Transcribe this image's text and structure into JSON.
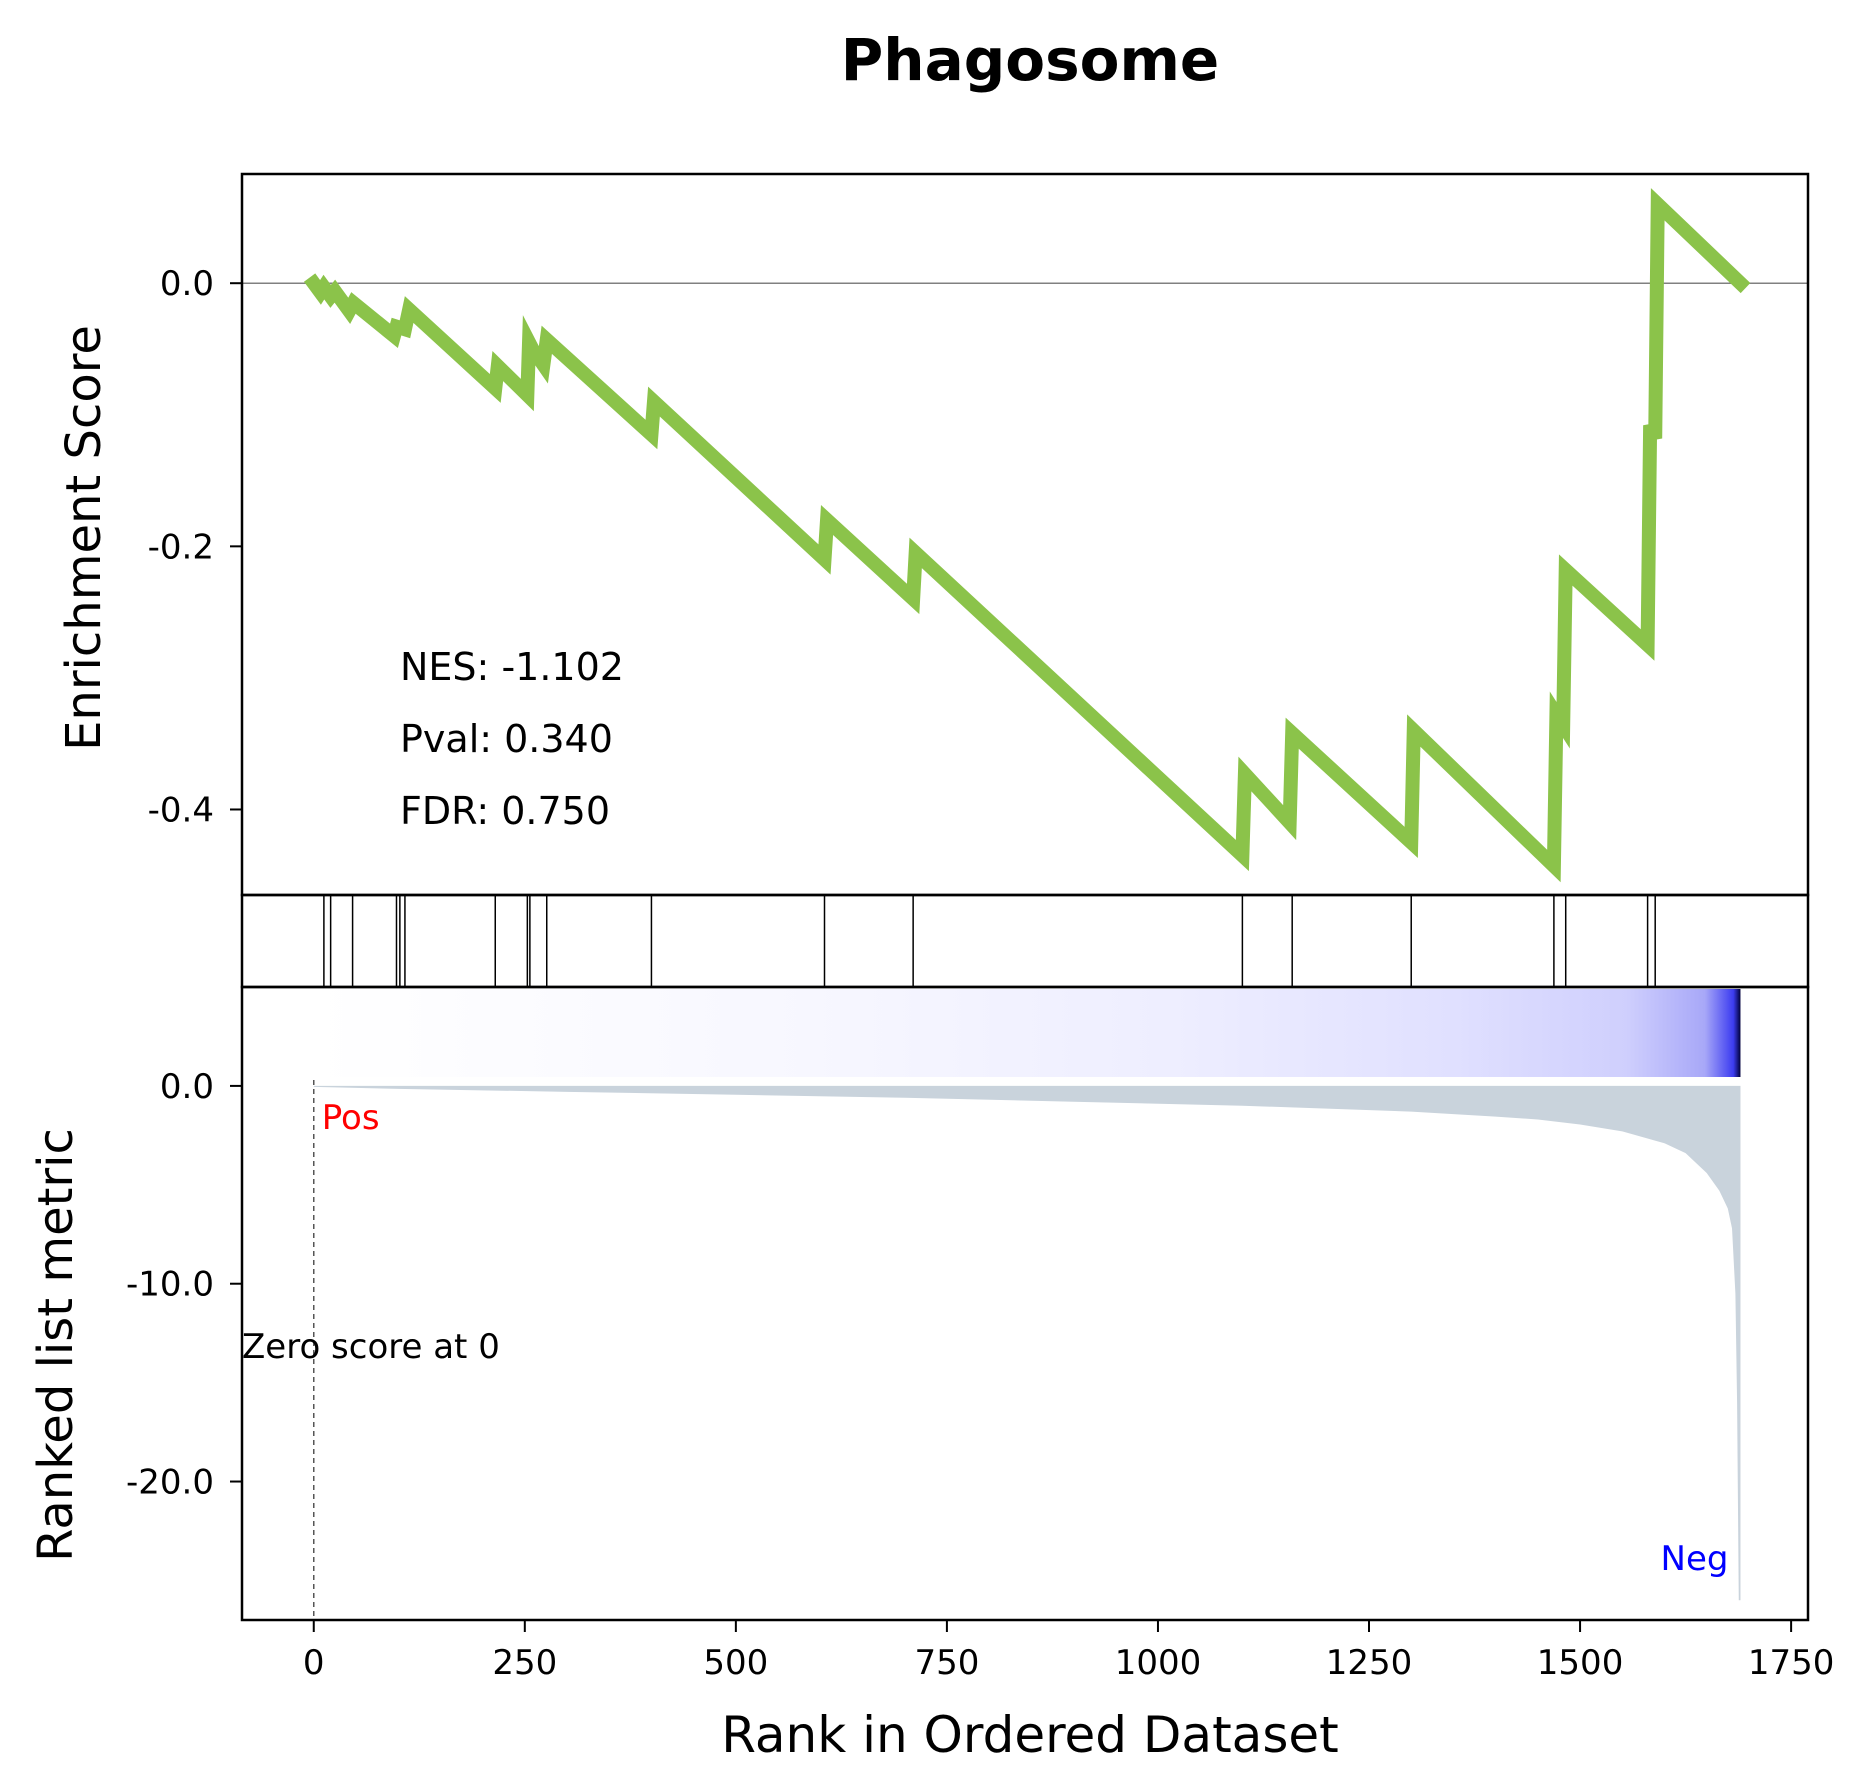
{
  "chart_data": {
    "type": "line",
    "title": "Phagosome",
    "xlabel": "Rank in Ordered Dataset",
    "x_ticks": [
      0,
      250,
      500,
      750,
      1000,
      1250,
      1500,
      1750
    ],
    "x_tick_labels": [
      "0",
      "250",
      "500",
      "750",
      "1000",
      "1250",
      "1500",
      "1750"
    ],
    "xlim": [
      -85,
      1770
    ],
    "grid": false,
    "enrichment_panel": {
      "ylabel": "Enrichment Score",
      "ylim": [
        -0.465,
        0.083
      ],
      "y_ticks": [
        0.0,
        -0.2,
        -0.4
      ],
      "y_tick_labels": [
        "0.0",
        "-0.2",
        "-0.4"
      ],
      "line_color": "#8bc34a",
      "zero_line_color": "#808080",
      "stats": [
        "NES: -1.102",
        "Pval: 0.340",
        "FDR: 0.750"
      ],
      "es_curve": {
        "x": [
          0,
          8,
          12,
          20,
          25,
          42,
          47,
          95,
          98,
          108,
          113,
          215,
          218,
          253,
          255,
          259,
          272,
          276,
          400,
          403,
          605,
          608,
          710,
          713,
          1100,
          1103,
          1156,
          1159,
          1300,
          1303,
          1469,
          1472,
          1480,
          1483,
          1580,
          1583,
          1589,
          1592,
          1690
        ],
        "y": [
          0.0,
          -0.007,
          -0.003,
          -0.01,
          -0.006,
          -0.021,
          -0.015,
          -0.04,
          -0.033,
          -0.035,
          -0.02,
          -0.08,
          -0.063,
          -0.085,
          -0.045,
          -0.05,
          -0.062,
          -0.043,
          -0.115,
          -0.09,
          -0.21,
          -0.18,
          -0.24,
          -0.205,
          -0.435,
          -0.373,
          -0.41,
          -0.342,
          -0.425,
          -0.34,
          -0.443,
          -0.328,
          -0.336,
          -0.218,
          -0.275,
          -0.108,
          -0.118,
          0.06,
          0.0
        ]
      }
    },
    "hits_panel": {
      "hit_ranks": [
        12,
        20,
        46,
        98,
        102,
        108,
        215,
        253,
        256,
        276,
        400,
        605,
        710,
        1100,
        1159,
        1300,
        1469,
        1483,
        1580,
        1589
      ]
    },
    "heatmap_strip": {
      "colormap": "white-to-blue",
      "start_color": "#ffffff",
      "end_color": "#0000ff",
      "last_color": "#00003a"
    },
    "ranked_metric_panel": {
      "ylabel": "Ranked list metric",
      "ylim": [
        -27.0,
        5.0
      ],
      "y_ticks": [
        0.0,
        -10.0,
        -20.0
      ],
      "y_tick_labels": [
        "0.0",
        "-10.0",
        "-20.0"
      ],
      "fill_color": "#c9d3dc",
      "zero_cross_label": "Zero score at 0",
      "pos_label": "Pos",
      "neg_label": "Neg",
      "pos_color": "#ff0000",
      "neg_color": "#0000ff",
      "metric_curve": {
        "x": [
          0,
          100,
          300,
          500,
          700,
          900,
          1100,
          1300,
          1400,
          1450,
          1500,
          1550,
          1600,
          1625,
          1650,
          1665,
          1675,
          1680,
          1684,
          1686,
          1688,
          1690
        ],
        "y": [
          -0.05,
          -0.15,
          -0.3,
          -0.45,
          -0.6,
          -0.8,
          -1.0,
          -1.3,
          -1.55,
          -1.7,
          -1.95,
          -2.3,
          -2.9,
          -3.4,
          -4.4,
          -5.3,
          -6.2,
          -7.2,
          -10.5,
          -16.0,
          -26.0,
          -26.0
        ]
      }
    }
  }
}
